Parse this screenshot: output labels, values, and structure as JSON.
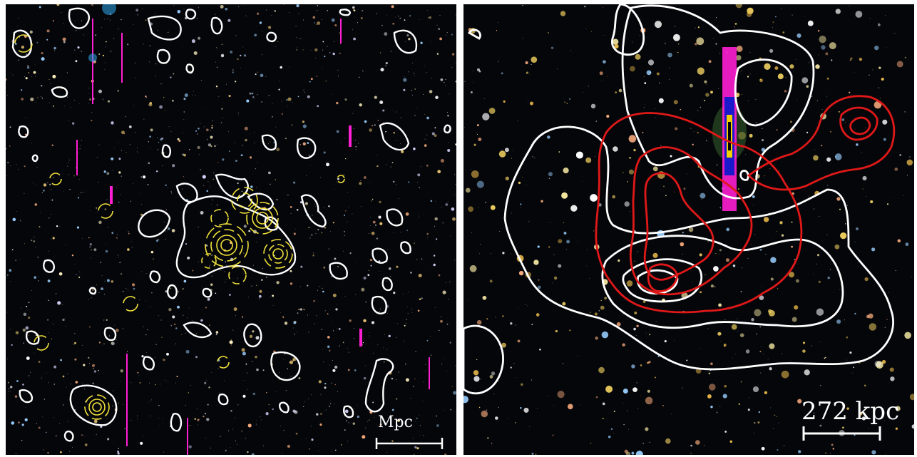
{
  "left_panel": {
    "scale_label": "Mpc",
    "contour_colors": {
      "primary": "#ffffff",
      "secondary": "#f2e23a"
    }
  },
  "right_panel": {
    "scale_label": "272 kpc",
    "contour_colors": {
      "primary": "#ffffff",
      "secondary": "#e01818"
    }
  },
  "colors": {
    "background": "#05060a",
    "star_trail": "#ff1fd2",
    "star_halo": "#2a9bd8"
  }
}
